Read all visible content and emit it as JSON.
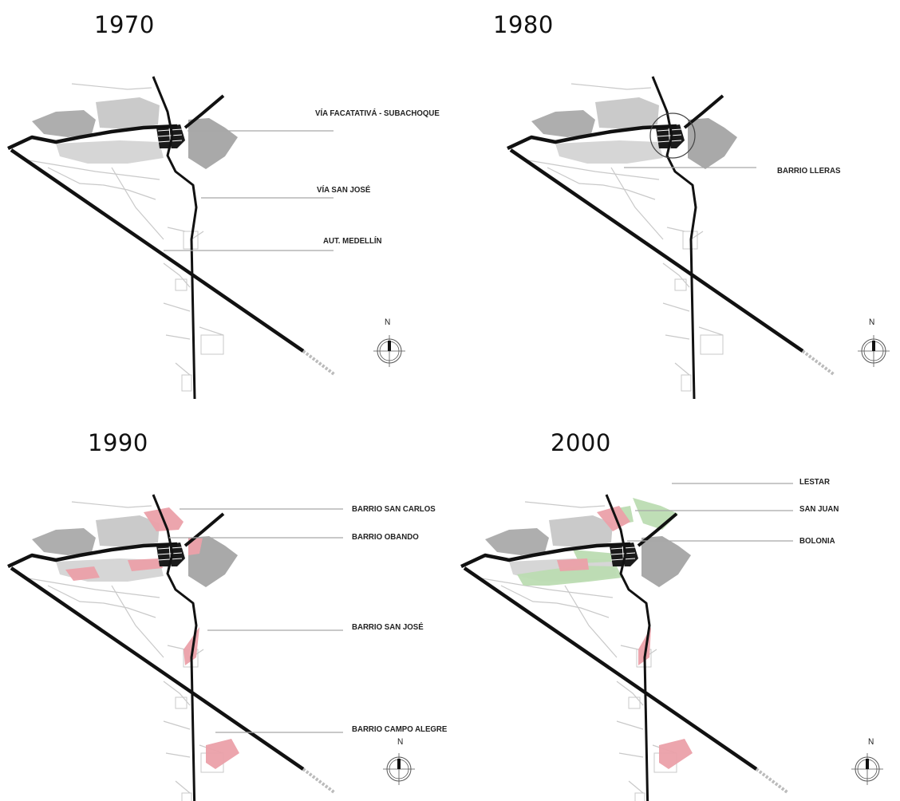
{
  "colors": {
    "road": "#111111",
    "centro": "#1a1a1a",
    "urban_gray": "#9a9a9a",
    "new_1990": "#eba0a9",
    "new_2000": "#bcdcb2",
    "streets": "#c9c9c9",
    "leader": "#a8a8a8"
  },
  "panels": [
    {
      "year": "1970",
      "labels": [
        {
          "text": "VÍA FACATATIVÁ - SUBACHOQUE"
        },
        {
          "text": "VÍA SAN JOSÉ"
        },
        {
          "text": "AUT. MEDELLÍN"
        }
      ],
      "north": "N"
    },
    {
      "year": "1980",
      "labels": [
        {
          "text": "BARRIO LLERAS"
        }
      ],
      "north": "N"
    },
    {
      "year": "1990",
      "labels": [
        {
          "text": "BARRIO SAN CARLOS"
        },
        {
          "text": "BARRIO OBANDO"
        },
        {
          "text": "BARRIO SAN JOSÉ"
        },
        {
          "text": "BARRIO CAMPO ALEGRE"
        }
      ],
      "north": "N"
    },
    {
      "year": "2000",
      "labels": [
        {
          "text": "LESTAR"
        },
        {
          "text": "SAN JUAN"
        },
        {
          "text": "BOLONIA"
        }
      ],
      "north": "N"
    }
  ]
}
